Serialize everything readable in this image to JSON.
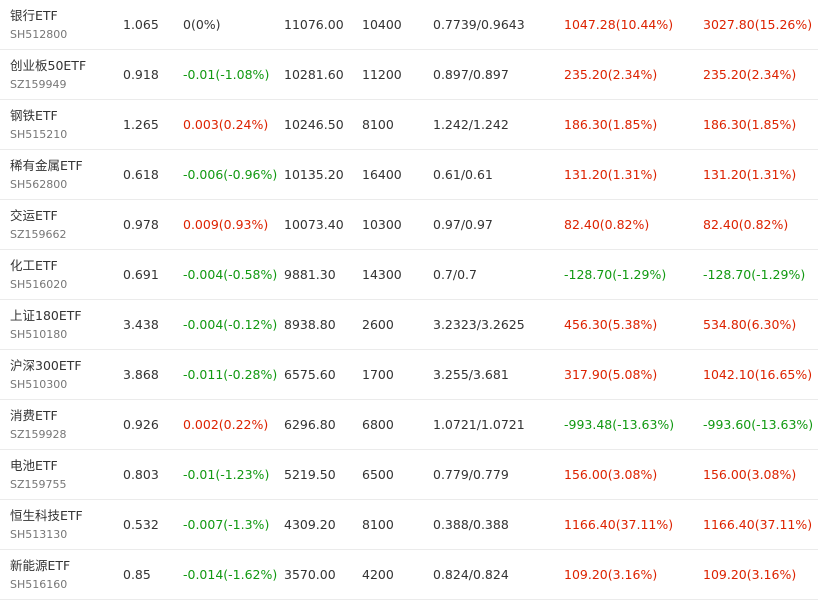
{
  "rows": [
    {
      "name": "银行ETF",
      "code": "SH512800",
      "price": "1.065",
      "change": "0(0%)",
      "change_dir": "flat",
      "cost": "11076.00",
      "shares": "10400",
      "ratio": "0.7739/0.9643",
      "profit": "1047.28(10.44%)",
      "profit_dir": "up",
      "total": "3027.80(15.26%)",
      "total_dir": "up"
    },
    {
      "name": "创业板50ETF",
      "code": "SZ159949",
      "price": "0.918",
      "change": "-0.01(-1.08%)",
      "change_dir": "down",
      "cost": "10281.60",
      "shares": "11200",
      "ratio": "0.897/0.897",
      "profit": "235.20(2.34%)",
      "profit_dir": "up",
      "total": "235.20(2.34%)",
      "total_dir": "up"
    },
    {
      "name": "钢铁ETF",
      "code": "SH515210",
      "price": "1.265",
      "change": "0.003(0.24%)",
      "change_dir": "up",
      "cost": "10246.50",
      "shares": "8100",
      "ratio": "1.242/1.242",
      "profit": "186.30(1.85%)",
      "profit_dir": "up",
      "total": "186.30(1.85%)",
      "total_dir": "up"
    },
    {
      "name": "稀有金属ETF",
      "code": "SH562800",
      "price": "0.618",
      "change": "-0.006(-0.96%)",
      "change_dir": "down",
      "cost": "10135.20",
      "shares": "16400",
      "ratio": "0.61/0.61",
      "profit": "131.20(1.31%)",
      "profit_dir": "up",
      "total": "131.20(1.31%)",
      "total_dir": "up"
    },
    {
      "name": "交运ETF",
      "code": "SZ159662",
      "price": "0.978",
      "change": "0.009(0.93%)",
      "change_dir": "up",
      "cost": "10073.40",
      "shares": "10300",
      "ratio": "0.97/0.97",
      "profit": "82.40(0.82%)",
      "profit_dir": "up",
      "total": "82.40(0.82%)",
      "total_dir": "up"
    },
    {
      "name": "化工ETF",
      "code": "SH516020",
      "price": "0.691",
      "change": "-0.004(-0.58%)",
      "change_dir": "down",
      "cost": "9881.30",
      "shares": "14300",
      "ratio": "0.7/0.7",
      "profit": "-128.70(-1.29%)",
      "profit_dir": "down",
      "total": "-128.70(-1.29%)",
      "total_dir": "down"
    },
    {
      "name": "上证180ETF",
      "code": "SH510180",
      "price": "3.438",
      "change": "-0.004(-0.12%)",
      "change_dir": "down",
      "cost": "8938.80",
      "shares": "2600",
      "ratio": "3.2323/3.2625",
      "profit": "456.30(5.38%)",
      "profit_dir": "up",
      "total": "534.80(6.30%)",
      "total_dir": "up"
    },
    {
      "name": "沪深300ETF",
      "code": "SH510300",
      "price": "3.868",
      "change": "-0.011(-0.28%)",
      "change_dir": "down",
      "cost": "6575.60",
      "shares": "1700",
      "ratio": "3.255/3.681",
      "profit": "317.90(5.08%)",
      "profit_dir": "up",
      "total": "1042.10(16.65%)",
      "total_dir": "up"
    },
    {
      "name": "消费ETF",
      "code": "SZ159928",
      "price": "0.926",
      "change": "0.002(0.22%)",
      "change_dir": "up",
      "cost": "6296.80",
      "shares": "6800",
      "ratio": "1.0721/1.0721",
      "profit": "-993.48(-13.63%)",
      "profit_dir": "down",
      "total": "-993.60(-13.63%)",
      "total_dir": "down"
    },
    {
      "name": "电池ETF",
      "code": "SZ159755",
      "price": "0.803",
      "change": "-0.01(-1.23%)",
      "change_dir": "down",
      "cost": "5219.50",
      "shares": "6500",
      "ratio": "0.779/0.779",
      "profit": "156.00(3.08%)",
      "profit_dir": "up",
      "total": "156.00(3.08%)",
      "total_dir": "up"
    },
    {
      "name": "恒生科技ETF",
      "code": "SH513130",
      "price": "0.532",
      "change": "-0.007(-1.3%)",
      "change_dir": "down",
      "cost": "4309.20",
      "shares": "8100",
      "ratio": "0.388/0.388",
      "profit": "1166.40(37.11%)",
      "profit_dir": "up",
      "total": "1166.40(37.11%)",
      "total_dir": "up"
    },
    {
      "name": "新能源ETF",
      "code": "SH516160",
      "price": "0.85",
      "change": "-0.014(-1.62%)",
      "change_dir": "down",
      "cost": "3570.00",
      "shares": "4200",
      "ratio": "0.824/0.824",
      "profit": "109.20(3.16%)",
      "profit_dir": "up",
      "total": "109.20(3.16%)",
      "total_dir": "up"
    }
  ],
  "colors": {
    "up": "#dd2200",
    "down": "#119911",
    "flat": "#333333"
  }
}
